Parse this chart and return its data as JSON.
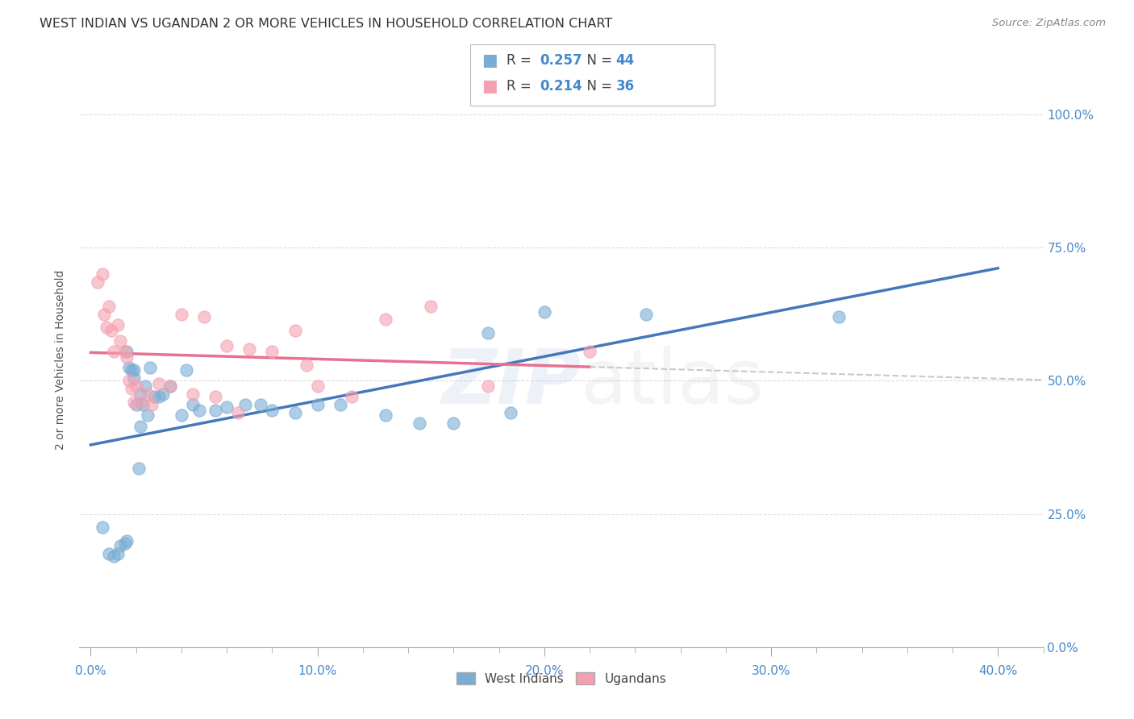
{
  "title": "WEST INDIAN VS UGANDAN 2 OR MORE VEHICLES IN HOUSEHOLD CORRELATION CHART",
  "source": "Source: ZipAtlas.com",
  "xlabel_ticks": [
    "0.0%",
    "",
    "",
    "",
    "",
    "10.0%",
    "",
    "",
    "",
    "",
    "20.0%",
    "",
    "",
    "",
    "",
    "30.0%",
    "",
    "",
    "",
    "",
    "40.0%"
  ],
  "xlabel_tick_vals": [
    0.0,
    0.02,
    0.04,
    0.06,
    0.08,
    0.1,
    0.12,
    0.14,
    0.16,
    0.18,
    0.2,
    0.22,
    0.24,
    0.26,
    0.28,
    0.3,
    0.32,
    0.34,
    0.36,
    0.38,
    0.4
  ],
  "ylabel": "2 or more Vehicles in Household",
  "ylabel_ticks": [
    "0.0%",
    "25.0%",
    "50.0%",
    "75.0%",
    "100.0%"
  ],
  "ylabel_tick_vals": [
    0.0,
    0.25,
    0.5,
    0.75,
    1.0
  ],
  "xlim": [
    -0.005,
    0.42
  ],
  "ylim": [
    0.0,
    1.08
  ],
  "west_indian_R": 0.257,
  "west_indian_N": 44,
  "ugandan_R": 0.214,
  "ugandan_N": 36,
  "west_indian_color": "#7aadd4",
  "ugandan_color": "#f4a0b0",
  "trendline_wi_color": "#4477BB",
  "trendline_ug_color": "#e87090",
  "trendline_ext_color": "#c8c8c8",
  "legend_label_wi": "West Indians",
  "legend_label_ug": "Ugandans",
  "west_indians_x": [
    0.005,
    0.008,
    0.01,
    0.012,
    0.013,
    0.015,
    0.016,
    0.016,
    0.017,
    0.018,
    0.019,
    0.019,
    0.02,
    0.021,
    0.022,
    0.022,
    0.023,
    0.024,
    0.025,
    0.026,
    0.028,
    0.03,
    0.032,
    0.035,
    0.04,
    0.042,
    0.045,
    0.048,
    0.055,
    0.06,
    0.068,
    0.075,
    0.08,
    0.09,
    0.1,
    0.11,
    0.13,
    0.145,
    0.16,
    0.175,
    0.185,
    0.2,
    0.245,
    0.33
  ],
  "west_indians_y": [
    0.225,
    0.175,
    0.17,
    0.175,
    0.19,
    0.195,
    0.2,
    0.555,
    0.525,
    0.52,
    0.52,
    0.505,
    0.455,
    0.335,
    0.415,
    0.475,
    0.455,
    0.49,
    0.435,
    0.525,
    0.47,
    0.47,
    0.475,
    0.49,
    0.435,
    0.52,
    0.455,
    0.445,
    0.445,
    0.45,
    0.455,
    0.455,
    0.445,
    0.44,
    0.455,
    0.455,
    0.435,
    0.42,
    0.42,
    0.59,
    0.44,
    0.63,
    0.625,
    0.62
  ],
  "ugandans_x": [
    0.003,
    0.005,
    0.006,
    0.007,
    0.008,
    0.009,
    0.01,
    0.012,
    0.013,
    0.015,
    0.016,
    0.017,
    0.018,
    0.019,
    0.02,
    0.022,
    0.025,
    0.027,
    0.03,
    0.035,
    0.04,
    0.045,
    0.05,
    0.055,
    0.06,
    0.065,
    0.07,
    0.08,
    0.09,
    0.095,
    0.1,
    0.115,
    0.13,
    0.15,
    0.175,
    0.22
  ],
  "ugandans_y": [
    0.685,
    0.7,
    0.625,
    0.6,
    0.64,
    0.595,
    0.555,
    0.605,
    0.575,
    0.555,
    0.545,
    0.5,
    0.485,
    0.46,
    0.49,
    0.46,
    0.475,
    0.455,
    0.495,
    0.49,
    0.625,
    0.475,
    0.62,
    0.47,
    0.565,
    0.44,
    0.56,
    0.555,
    0.595,
    0.53,
    0.49,
    0.47,
    0.615,
    0.64,
    0.49,
    0.555
  ],
  "watermark_zip": "ZIP",
  "watermark_atlas": "atlas",
  "background_color": "#ffffff",
  "grid_color": "#dddddd"
}
